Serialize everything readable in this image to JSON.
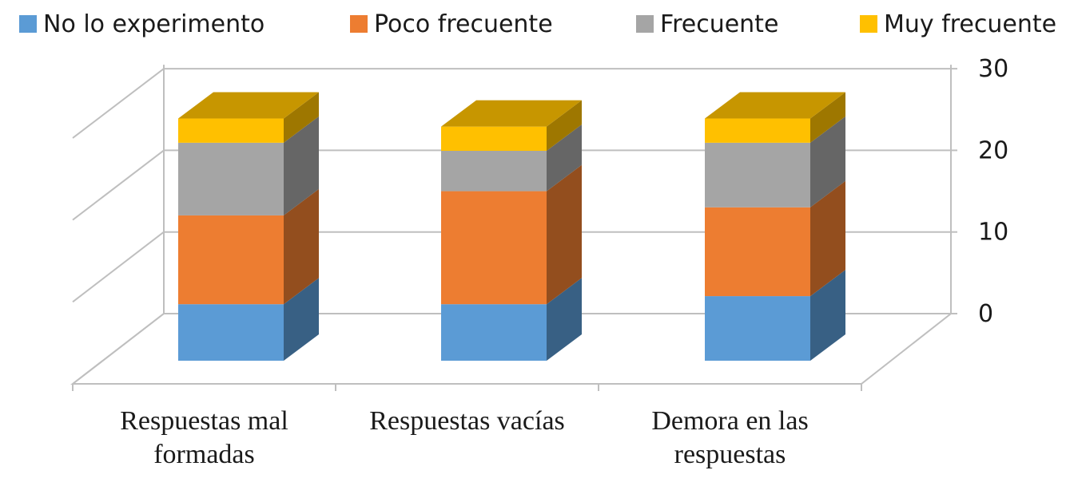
{
  "chart_data": {
    "type": "bar",
    "stacked": true,
    "three_d": true,
    "categories": [
      [
        "Respuestas mal",
        "formadas"
      ],
      [
        "Respuestas vacías"
      ],
      [
        "Demora en las",
        "respuestas"
      ]
    ],
    "series": [
      {
        "name": "No lo experimento",
        "color": "#5b9bd5",
        "values": [
          7,
          7,
          8
        ]
      },
      {
        "name": "Poco frecuente",
        "color": "#ed7d31",
        "values": [
          11,
          14,
          11
        ]
      },
      {
        "name": "Frecuente",
        "color": "#a5a5a5",
        "values": [
          9,
          5,
          8
        ]
      },
      {
        "name": "Muy frecuente",
        "color": "#ffc000",
        "values": [
          3,
          3,
          3
        ]
      }
    ],
    "y_ticks": [
      "0",
      "10",
      "20",
      "30"
    ],
    "ylim": [
      0,
      30
    ],
    "y_axis_position": "right",
    "legend_position": "top",
    "grid": true
  }
}
